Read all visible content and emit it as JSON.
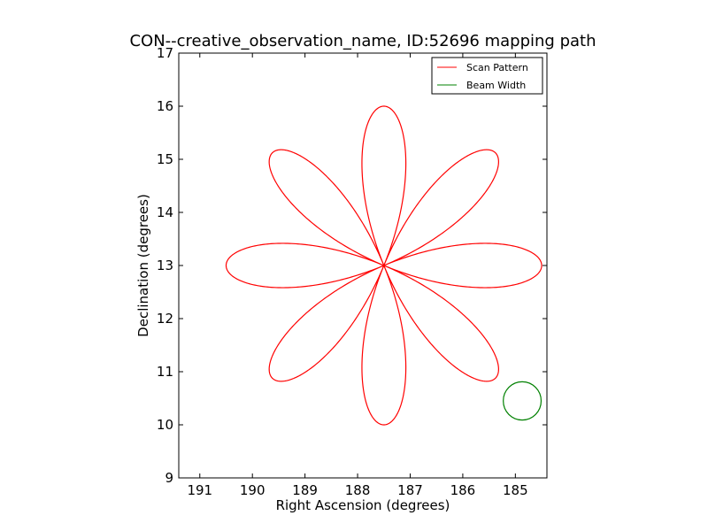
{
  "chart_data": {
    "type": "line",
    "title": "CON--creative_observation_name, ID:52696 mapping path",
    "xlabel": "Right Ascension (degrees)",
    "ylabel": "Declination (degrees)",
    "xlim": [
      191.4,
      184.4
    ],
    "ylim": [
      9,
      17
    ],
    "x_inverted": true,
    "xticks": [
      191,
      190,
      189,
      188,
      187,
      186,
      185
    ],
    "yticks": [
      9,
      10,
      11,
      12,
      13,
      14,
      15,
      16,
      17
    ],
    "grid": false,
    "legend": {
      "placement": "top-right",
      "entries": [
        {
          "label": "Scan Pattern",
          "color": "#ff0000"
        },
        {
          "label": "Beam Width",
          "color": "#008000"
        }
      ]
    },
    "series": [
      {
        "name": "Scan Pattern",
        "kind": "rose-curve",
        "color": "#ff0000",
        "center_ra": 187.5,
        "center_dec": 13.0,
        "petals": 8,
        "radius_deg": 3.0
      },
      {
        "name": "Beam Width",
        "kind": "circle",
        "color": "#008000",
        "center_ra": 184.87,
        "center_dec": 10.45,
        "radius_deg": 0.36
      }
    ]
  }
}
